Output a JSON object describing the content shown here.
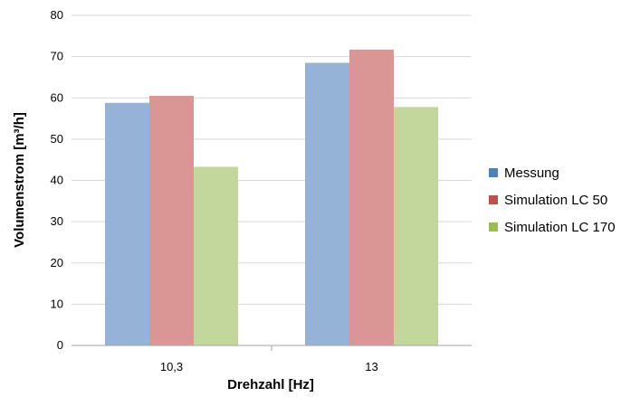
{
  "chart_data": {
    "type": "bar",
    "title": "",
    "xlabel": "Drehzahl [Hz]",
    "ylabel": "Volumenstrom [m³/h]",
    "categories": [
      "10,3",
      "13"
    ],
    "ylim": [
      0,
      80
    ],
    "yticks": [
      0,
      10,
      20,
      30,
      40,
      50,
      60,
      70,
      80
    ],
    "grid": true,
    "legend_position": "right",
    "series": [
      {
        "name": "Messung",
        "color": "#95B3D7",
        "legend_color": "#4F81BD",
        "values": [
          58.8,
          68.5
        ]
      },
      {
        "name": "Simulation LC 50",
        "color": "#D99694",
        "legend_color": "#C0504D",
        "values": [
          60.5,
          71.7
        ]
      },
      {
        "name": "Simulation LC 170",
        "color": "#C3D69B",
        "legend_color": "#9BBB59",
        "values": [
          43.3,
          57.8
        ]
      }
    ]
  }
}
